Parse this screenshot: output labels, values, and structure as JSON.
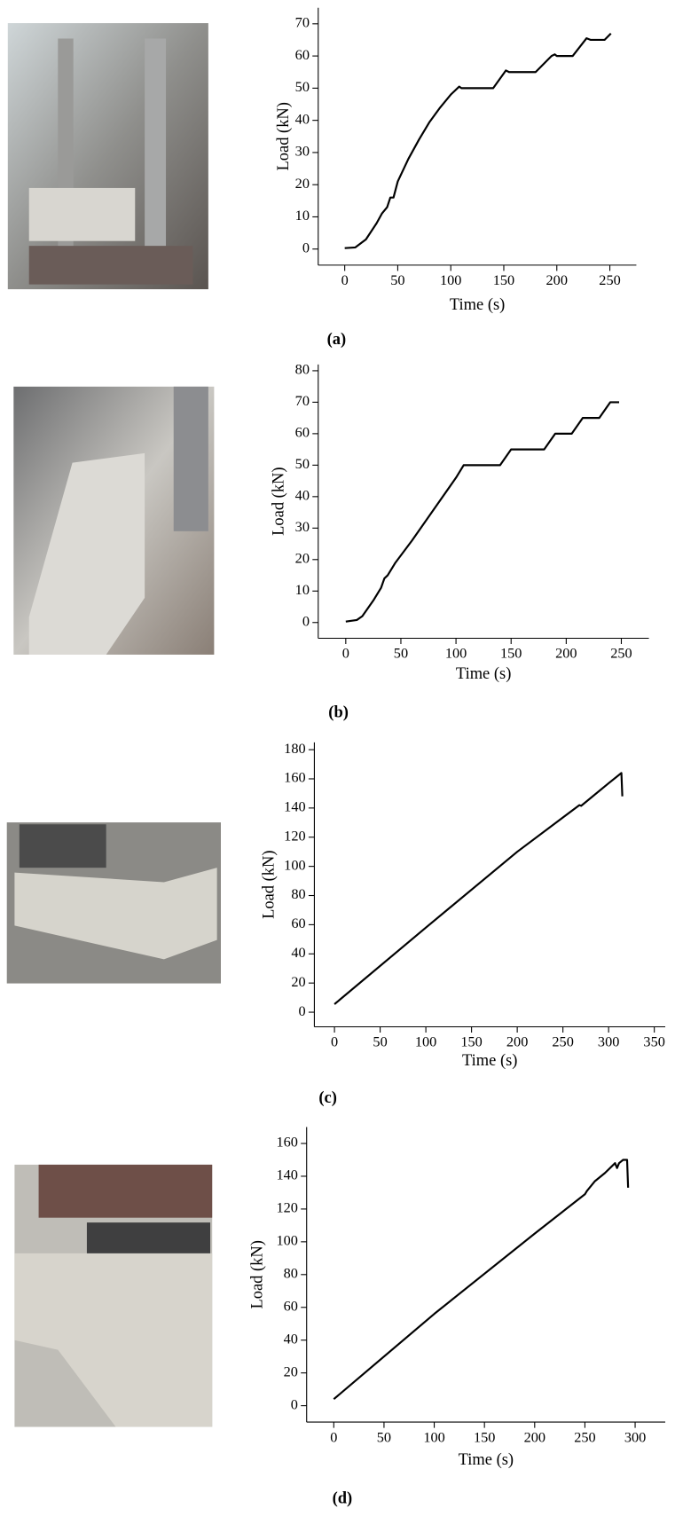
{
  "chart_data": [
    {
      "type": "line",
      "caption": "(a)",
      "x_label": "Time (s)",
      "y_label": "Load (kN)",
      "x": [
        0,
        10,
        20,
        30,
        35,
        40,
        43,
        46,
        50,
        60,
        70,
        80,
        90,
        100,
        108,
        110,
        140,
        152,
        155,
        180,
        195,
        198,
        200,
        215,
        228,
        232,
        245,
        251
      ],
      "series": [
        {
          "color": "#000000",
          "values": [
            0.3,
            0.5,
            3,
            8,
            11,
            13,
            16,
            16,
            21,
            28,
            34,
            39.5,
            44,
            48,
            50.5,
            50,
            50,
            55.5,
            55,
            55,
            60,
            60.5,
            60,
            60,
            65.5,
            65,
            65,
            67
          ]
        }
      ],
      "xlim": [
        -25,
        275
      ],
      "ylim": [
        -5,
        75
      ],
      "xticks": [
        0,
        50,
        100,
        150,
        200,
        250
      ],
      "yticks": [
        0,
        10,
        20,
        30,
        40,
        50,
        60,
        70
      ]
    },
    {
      "type": "line",
      "caption": "(b)",
      "x_label": "Time (s)",
      "y_label": "Load (kN)",
      "x": [
        0,
        10,
        15,
        25,
        32,
        35,
        38,
        45,
        60,
        80,
        100,
        107,
        140,
        150,
        180,
        190,
        205,
        215,
        230,
        240,
        248
      ],
      "series": [
        {
          "color": "#000000",
          "values": [
            0.3,
            0.8,
            2,
            7,
            11,
            14,
            15,
            19,
            26,
            36,
            46,
            50,
            50,
            55,
            55,
            60,
            60,
            65,
            65,
            70,
            70
          ]
        }
      ],
      "xlim": [
        -25,
        275
      ],
      "ylim": [
        -5,
        82
      ],
      "xticks": [
        0,
        50,
        100,
        150,
        200,
        250
      ],
      "yticks": [
        0,
        10,
        20,
        30,
        40,
        50,
        60,
        70,
        80
      ]
    },
    {
      "type": "line",
      "caption": "(c)",
      "x_label": "Time (s)",
      "y_label": "Load (kN)",
      "x": [
        0,
        100,
        200,
        268,
        270,
        300,
        314,
        315
      ],
      "series": [
        {
          "color": "#000000",
          "values": [
            5.5,
            58,
            110,
            142,
            141.5,
            157,
            164,
            148
          ]
        }
      ],
      "xlim": [
        -22,
        362
      ],
      "ylim": [
        -10,
        185
      ],
      "xticks": [
        0,
        50,
        100,
        150,
        200,
        250,
        300,
        350
      ],
      "yticks": [
        0,
        20,
        40,
        60,
        80,
        100,
        120,
        140,
        160,
        180
      ]
    },
    {
      "type": "line",
      "caption": "(d)",
      "x_label": "Time (s)",
      "y_label": "Load (kN)",
      "x": [
        0,
        100,
        200,
        250,
        252,
        260,
        270,
        280,
        282,
        284,
        288,
        292,
        293
      ],
      "series": [
        {
          "color": "#000000",
          "values": [
            4,
            56,
            105,
            129,
            131,
            137,
            142,
            148,
            145,
            148,
            150,
            150,
            133
          ]
        }
      ],
      "xlim": [
        -27,
        330
      ],
      "ylim": [
        -10,
        170
      ],
      "xticks": [
        0,
        50,
        100,
        150,
        200,
        250,
        300
      ],
      "yticks": [
        0,
        20,
        40,
        60,
        80,
        100,
        120,
        140,
        160
      ]
    }
  ]
}
